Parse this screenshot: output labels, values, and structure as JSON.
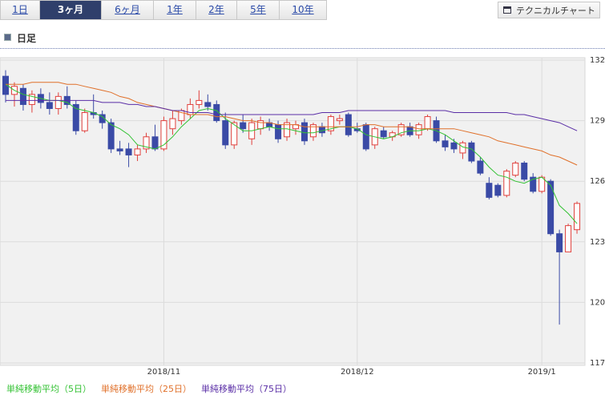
{
  "tabs": [
    "1日",
    "3ヶ月",
    "6ヶ月",
    "1年",
    "2年",
    "5年",
    "10年"
  ],
  "selected_tab": 1,
  "technical_button": "テクニカルチャート",
  "period_label": "日足",
  "chart_data": {
    "type": "candlestick",
    "up_color": "#e0403c",
    "down_color": "#3a4aa6",
    "candles": {
      "open": [
        131.2,
        130.3,
        130.6,
        129.8,
        130.3,
        129.9,
        129.6,
        130.2,
        129.8,
        128.5,
        129.4,
        129.3,
        128.9,
        127.6,
        127.6,
        127.3,
        127.6,
        128.2,
        127.6,
        128.6,
        129.0,
        129.3,
        129.8,
        129.9,
        129.8,
        129.0,
        127.8,
        128.9,
        128.1,
        128.6,
        128.9,
        128.8,
        128.2,
        128.6,
        128.9,
        128.2,
        128.7,
        128.5,
        129.0,
        129.3,
        128.6,
        128.8,
        127.8,
        128.5,
        128.2,
        128.3,
        128.7,
        128.3,
        128.6,
        129.0,
        128.0,
        127.9,
        127.4,
        127.9,
        127.0,
        125.9,
        125.8,
        125.3,
        126.3,
        126.9,
        126.2,
        125.5,
        126.0,
        123.4,
        122.5,
        123.6
      ],
      "high": [
        131.5,
        130.9,
        130.8,
        130.5,
        130.6,
        130.4,
        130.4,
        130.7,
        130.0,
        129.6,
        130.3,
        129.5,
        129.1,
        128.0,
        127.9,
        127.8,
        128.4,
        128.8,
        129.2,
        129.5,
        129.6,
        130.1,
        130.5,
        130.3,
        130.0,
        129.4,
        129.0,
        129.3,
        129.1,
        129.2,
        129.1,
        129.0,
        129.1,
        129.0,
        129.1,
        128.9,
        128.9,
        129.3,
        129.3,
        129.4,
        128.9,
        128.9,
        128.7,
        128.7,
        128.5,
        128.9,
        128.9,
        128.9,
        129.3,
        129.2,
        128.3,
        128.1,
        128.0,
        128.0,
        127.2,
        126.2,
        125.9,
        126.6,
        127.0,
        127.0,
        126.4,
        126.3,
        126.1,
        123.6,
        123.9,
        125.0
      ],
      "low": [
        129.9,
        129.7,
        129.5,
        129.4,
        129.6,
        129.3,
        129.3,
        129.6,
        128.3,
        128.4,
        129.1,
        128.6,
        127.4,
        127.3,
        126.7,
        127.0,
        127.4,
        127.5,
        127.5,
        128.3,
        128.8,
        129.1,
        129.6,
        129.5,
        128.9,
        127.6,
        127.6,
        128.4,
        127.8,
        128.3,
        128.5,
        127.9,
        128.0,
        128.3,
        127.8,
        128.0,
        128.2,
        128.3,
        128.8,
        128.2,
        128.4,
        127.5,
        127.6,
        128.1,
        128.0,
        128.2,
        128.2,
        128.1,
        128.5,
        127.9,
        127.5,
        127.4,
        127.1,
        126.9,
        126.3,
        125.1,
        125.2,
        125.2,
        126.2,
        126.0,
        125.4,
        125.4,
        123.3,
        118.9,
        122.5,
        123.4
      ],
      "close": [
        130.3,
        130.7,
        129.8,
        130.3,
        129.9,
        129.6,
        130.2,
        129.8,
        128.5,
        129.4,
        129.3,
        128.9,
        127.6,
        127.5,
        127.3,
        127.6,
        128.2,
        127.6,
        129.0,
        129.1,
        129.5,
        129.8,
        130.0,
        129.7,
        129.0,
        127.8,
        128.9,
        128.6,
        128.9,
        129.0,
        128.7,
        128.1,
        128.9,
        128.8,
        128.0,
        128.8,
        128.4,
        129.2,
        129.1,
        128.3,
        128.5,
        127.6,
        128.6,
        128.2,
        128.4,
        128.8,
        128.3,
        128.8,
        129.2,
        128.0,
        127.7,
        127.6,
        127.9,
        127.0,
        126.4,
        125.2,
        125.3,
        126.5,
        126.9,
        126.1,
        125.5,
        126.2,
        123.4,
        122.5,
        123.8,
        124.9
      ]
    },
    "series": [
      {
        "name": "単純移動平均（5日）",
        "color": "#33c233",
        "values": [
          130.8,
          130.5,
          130.3,
          130.2,
          130.1,
          130.0,
          130.0,
          129.9,
          129.6,
          129.5,
          129.4,
          129.2,
          128.8,
          128.6,
          128.3,
          127.8,
          127.7,
          127.6,
          127.8,
          128.2,
          128.7,
          129.1,
          129.5,
          129.6,
          129.5,
          129.1,
          128.8,
          128.5,
          128.5,
          128.6,
          128.7,
          128.6,
          128.6,
          128.5,
          128.4,
          128.4,
          128.5,
          128.6,
          128.7,
          128.7,
          128.6,
          128.3,
          128.2,
          128.1,
          128.2,
          128.4,
          128.5,
          128.5,
          128.6,
          128.5,
          128.3,
          128.0,
          127.7,
          127.6,
          127.2,
          126.7,
          126.3,
          126.2,
          126.0,
          125.9,
          126.1,
          126.2,
          125.8,
          124.8,
          124.4,
          123.9
        ]
      },
      {
        "name": "単純移動平均（25日）",
        "color": "#e0702a",
        "values": [
          130.8,
          130.8,
          130.8,
          130.9,
          130.9,
          130.9,
          130.9,
          130.8,
          130.8,
          130.7,
          130.6,
          130.5,
          130.4,
          130.2,
          130.1,
          129.9,
          129.8,
          129.7,
          129.6,
          129.5,
          129.4,
          129.3,
          129.3,
          129.3,
          129.2,
          129.2,
          129.1,
          129.0,
          129.0,
          128.9,
          128.9,
          128.8,
          128.8,
          128.8,
          128.7,
          128.7,
          128.7,
          128.7,
          128.7,
          128.7,
          128.7,
          128.8,
          128.8,
          128.7,
          128.7,
          128.7,
          128.7,
          128.6,
          128.6,
          128.6,
          128.6,
          128.6,
          128.5,
          128.4,
          128.3,
          128.2,
          128.0,
          127.9,
          127.8,
          127.7,
          127.6,
          127.5,
          127.3,
          127.2,
          127.0,
          126.8
        ]
      },
      {
        "name": "単純移動平均（75日）",
        "color": "#5a2ea6",
        "values": [
          130.0,
          130.0,
          130.0,
          130.0,
          130.0,
          130.0,
          130.0,
          130.0,
          130.0,
          130.0,
          130.0,
          129.9,
          129.9,
          129.9,
          129.8,
          129.8,
          129.7,
          129.7,
          129.6,
          129.5,
          129.5,
          129.4,
          129.4,
          129.4,
          129.3,
          129.3,
          129.3,
          129.3,
          129.3,
          129.3,
          129.3,
          129.3,
          129.3,
          129.3,
          129.3,
          129.3,
          129.4,
          129.4,
          129.4,
          129.5,
          129.5,
          129.5,
          129.5,
          129.5,
          129.5,
          129.5,
          129.5,
          129.5,
          129.5,
          129.5,
          129.5,
          129.4,
          129.4,
          129.4,
          129.4,
          129.4,
          129.4,
          129.4,
          129.3,
          129.3,
          129.2,
          129.1,
          129.0,
          128.9,
          128.7,
          128.5
        ]
      }
    ],
    "ylim": [
      117,
      132
    ],
    "yticks": [
      117,
      120,
      123,
      126,
      129,
      132
    ],
    "xticks": [
      {
        "value": 18,
        "label": "2018/11"
      },
      {
        "value": 40,
        "label": "2018/12"
      },
      {
        "value": 61,
        "label": "2019/1"
      }
    ],
    "grid": true
  }
}
